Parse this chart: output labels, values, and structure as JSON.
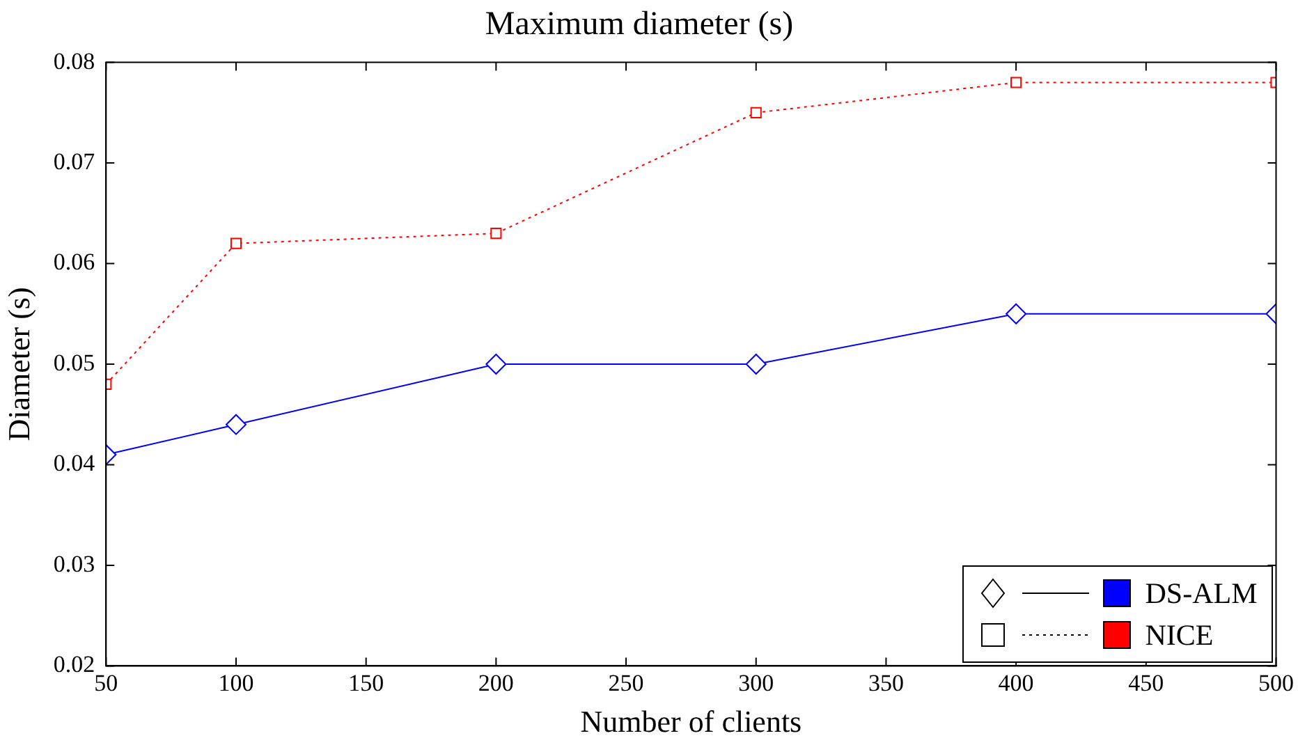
{
  "chart_data": {
    "type": "line",
    "title": "Maximum diameter (s)",
    "xlabel": "Number of clients",
    "ylabel": "Diameter (s)",
    "x": [
      50,
      100,
      200,
      300,
      400,
      500
    ],
    "series": [
      {
        "name": "DS-ALM",
        "color": "#0000ff",
        "marker": "diamond",
        "line_style": "solid",
        "values": [
          0.041,
          0.044,
          0.05,
          0.05,
          0.055,
          0.055
        ]
      },
      {
        "name": "NICE",
        "color": "#ff0000",
        "marker": "square",
        "line_style": "dotted",
        "values": [
          0.048,
          0.062,
          0.063,
          0.075,
          0.078,
          0.078
        ]
      }
    ],
    "xlim": [
      50,
      500
    ],
    "xticks": [
      50,
      100,
      150,
      200,
      250,
      300,
      350,
      400,
      450,
      500
    ],
    "ylim": [
      0.02,
      0.08
    ],
    "yticks": [
      0.02,
      0.03,
      0.04,
      0.05,
      0.06,
      0.07,
      0.08
    ],
    "grid": false,
    "legend": "bottom right"
  }
}
